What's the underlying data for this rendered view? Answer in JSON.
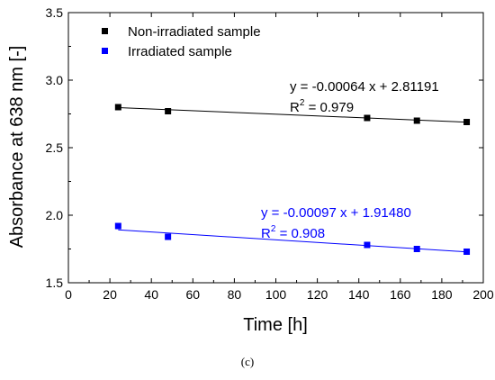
{
  "caption": "(c)",
  "chart_data": {
    "type": "scatter",
    "xlabel": "Time [h]",
    "ylabel": "Absorbance at 638 nm [-]",
    "xlim": [
      0,
      200
    ],
    "ylim": [
      1.5,
      3.5
    ],
    "x_ticks": [
      0,
      20,
      40,
      60,
      80,
      100,
      120,
      140,
      160,
      180,
      200
    ],
    "y_ticks": [
      1.5,
      2.0,
      2.5,
      3.0,
      3.5
    ],
    "x_tick_labels": [
      "0",
      "20",
      "40",
      "60",
      "80",
      "100",
      "120",
      "140",
      "160",
      "180",
      "200"
    ],
    "y_tick_labels": [
      "1.5",
      "2.0",
      "2.5",
      "3.0",
      "3.5"
    ],
    "grid": false,
    "legend_position": "top-left",
    "series": [
      {
        "name": "Non-irradiated sample",
        "color": "#000000",
        "marker": "square",
        "x": [
          24,
          48,
          144,
          168,
          192
        ],
        "y": [
          2.8,
          2.77,
          2.72,
          2.7,
          2.69
        ],
        "fit": {
          "slope": -0.00064,
          "intercept": 2.81191,
          "x_range": [
            24,
            192
          ],
          "equation": "y = -0.00064 x + 2.81191",
          "r2_prefix": "R",
          "r2_sup": "2",
          "r2_value": " = 0.979"
        }
      },
      {
        "name": "Irradiated sample",
        "color": "#0000ff",
        "marker": "square",
        "x": [
          24,
          48,
          144,
          168,
          192
        ],
        "y": [
          1.92,
          1.84,
          1.78,
          1.75,
          1.73
        ],
        "fit": {
          "slope": -0.00097,
          "intercept": 1.9148,
          "x_range": [
            24,
            192
          ],
          "equation": "y = -0.00097 x + 1.91480",
          "r2_prefix": "R",
          "r2_sup": "2",
          "r2_value": " = 0.908"
        }
      }
    ]
  }
}
